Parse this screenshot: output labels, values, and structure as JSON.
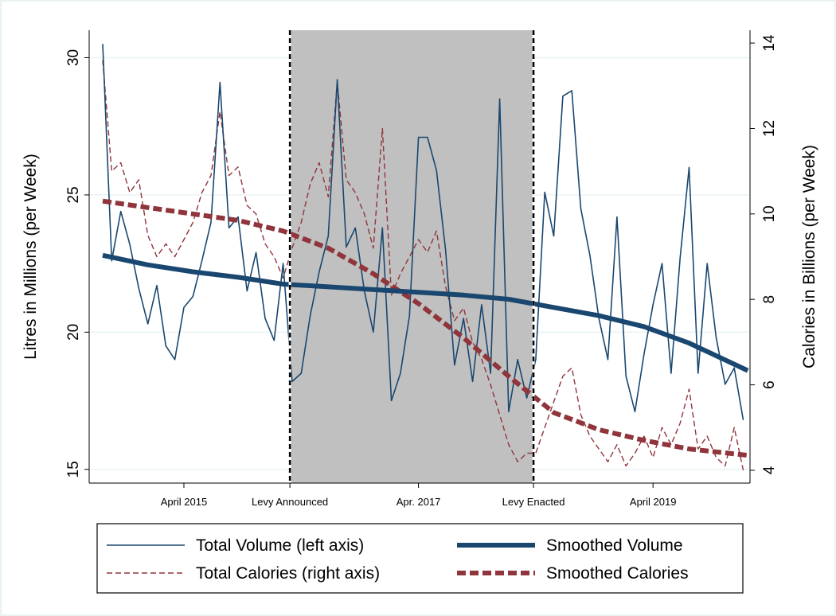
{
  "chart_data": {
    "type": "line",
    "y_label": "Litres in Millions (per Week)",
    "y2_label": "Calories in Billions (per Week)",
    "x": [
      0,
      4,
      8,
      12,
      16,
      20,
      24,
      28,
      32,
      36,
      40,
      44,
      48,
      52,
      56,
      60,
      64,
      68,
      72,
      76,
      80,
      84,
      88,
      92,
      96,
      100,
      104,
      108,
      112,
      116,
      120,
      124,
      128,
      132,
      136,
      140,
      144,
      148,
      152,
      156,
      160,
      164,
      168,
      172,
      176,
      180,
      184,
      188,
      192,
      196,
      200,
      204,
      208,
      212,
      216,
      220,
      224,
      228,
      232,
      236,
      240,
      244,
      248,
      252,
      256,
      260,
      264,
      268,
      272,
      276,
      280,
      284
    ],
    "xlim": [
      -6,
      287
    ],
    "xticks": [
      {
        "value": 36,
        "label": "April 2015"
      },
      {
        "value": 83,
        "label": "Levy Announced"
      },
      {
        "value": 140,
        "label": "Apr. 2017"
      },
      {
        "value": 191,
        "label": "Levy Enacted"
      },
      {
        "value": 244,
        "label": "April 2019"
      }
    ],
    "shaded_span": [
      83,
      191
    ],
    "ylim": [
      14.5,
      31
    ],
    "yticks": [
      15,
      20,
      25,
      30
    ],
    "y2lim": [
      3.7,
      14.3
    ],
    "y2ticks": [
      4,
      6,
      8,
      10,
      12,
      14
    ],
    "grid": true,
    "legend_position": "bottom",
    "series": [
      {
        "name": "Total Volume (left axis)",
        "color": "#1a476f",
        "style": "thin-solid",
        "values": [
          30.5,
          22.6,
          24.4,
          23.2,
          21.6,
          20.3,
          21.7,
          19.5,
          19.0,
          20.9,
          21.3,
          22.6,
          24.0,
          29.1,
          23.8,
          24.2,
          21.5,
          22.9,
          20.5,
          19.7,
          22.5,
          18.2,
          18.5,
          20.6,
          22.2,
          23.5,
          29.2,
          23.1,
          23.8,
          21.5,
          20.0,
          23.8,
          17.5,
          18.5,
          20.6,
          27.1,
          27.1,
          25.9,
          23.0,
          18.8,
          20.5,
          18.2,
          21.0,
          18.5,
          28.5,
          17.1,
          19.0,
          17.6,
          19.0,
          25.1,
          23.5,
          28.6,
          28.8,
          24.5,
          22.8,
          20.5,
          19.0,
          24.2,
          18.4,
          17.1,
          19.2,
          21.0,
          22.5,
          18.5,
          22.7,
          26.0,
          18.5,
          22.5,
          19.8,
          18.1,
          18.7,
          16.8
        ]
      },
      {
        "name": "Smoothed Volume",
        "color": "#1a476f",
        "style": "thick-solid",
        "x": [
          0,
          20,
          40,
          60,
          80,
          100,
          120,
          140,
          160,
          180,
          200,
          220,
          240,
          260,
          286
        ],
        "values": [
          22.8,
          22.45,
          22.2,
          22.0,
          21.75,
          21.65,
          21.55,
          21.45,
          21.35,
          21.2,
          20.9,
          20.6,
          20.2,
          19.6,
          18.6
        ]
      },
      {
        "name": "Total Calories (right axis)",
        "color": "#90353b",
        "style": "thin-dash",
        "axis": "y2",
        "values": [
          13.6,
          11.0,
          11.2,
          10.5,
          10.8,
          9.5,
          9.0,
          9.3,
          9.0,
          9.4,
          9.8,
          10.5,
          10.9,
          12.4,
          10.9,
          11.1,
          10.2,
          10.0,
          9.3,
          9.0,
          8.5,
          9.2,
          9.8,
          10.7,
          11.2,
          10.4,
          13.1,
          10.8,
          10.5,
          10.0,
          9.2,
          12.0,
          8.1,
          8.6,
          9.0,
          9.4,
          9.1,
          9.6,
          8.3,
          7.5,
          7.8,
          7.0,
          6.6,
          6.0,
          5.3,
          4.6,
          4.2,
          4.4,
          4.4,
          5.0,
          5.6,
          6.2,
          6.4,
          5.3,
          4.8,
          4.5,
          4.2,
          4.6,
          4.1,
          4.4,
          4.8,
          4.3,
          5.0,
          4.6,
          5.1,
          5.9,
          4.5,
          4.8,
          4.3,
          4.1,
          5.0,
          4.0
        ]
      },
      {
        "name": "Smoothed Calories",
        "color": "#90353b",
        "style": "thick-dash",
        "axis": "y2",
        "x": [
          0,
          20,
          40,
          60,
          80,
          100,
          120,
          140,
          160,
          180,
          200,
          220,
          240,
          260,
          286
        ],
        "values": [
          10.3,
          10.15,
          10.0,
          9.85,
          9.6,
          9.2,
          8.6,
          7.9,
          7.1,
          6.2,
          5.35,
          4.95,
          4.7,
          4.5,
          4.35
        ]
      }
    ]
  }
}
